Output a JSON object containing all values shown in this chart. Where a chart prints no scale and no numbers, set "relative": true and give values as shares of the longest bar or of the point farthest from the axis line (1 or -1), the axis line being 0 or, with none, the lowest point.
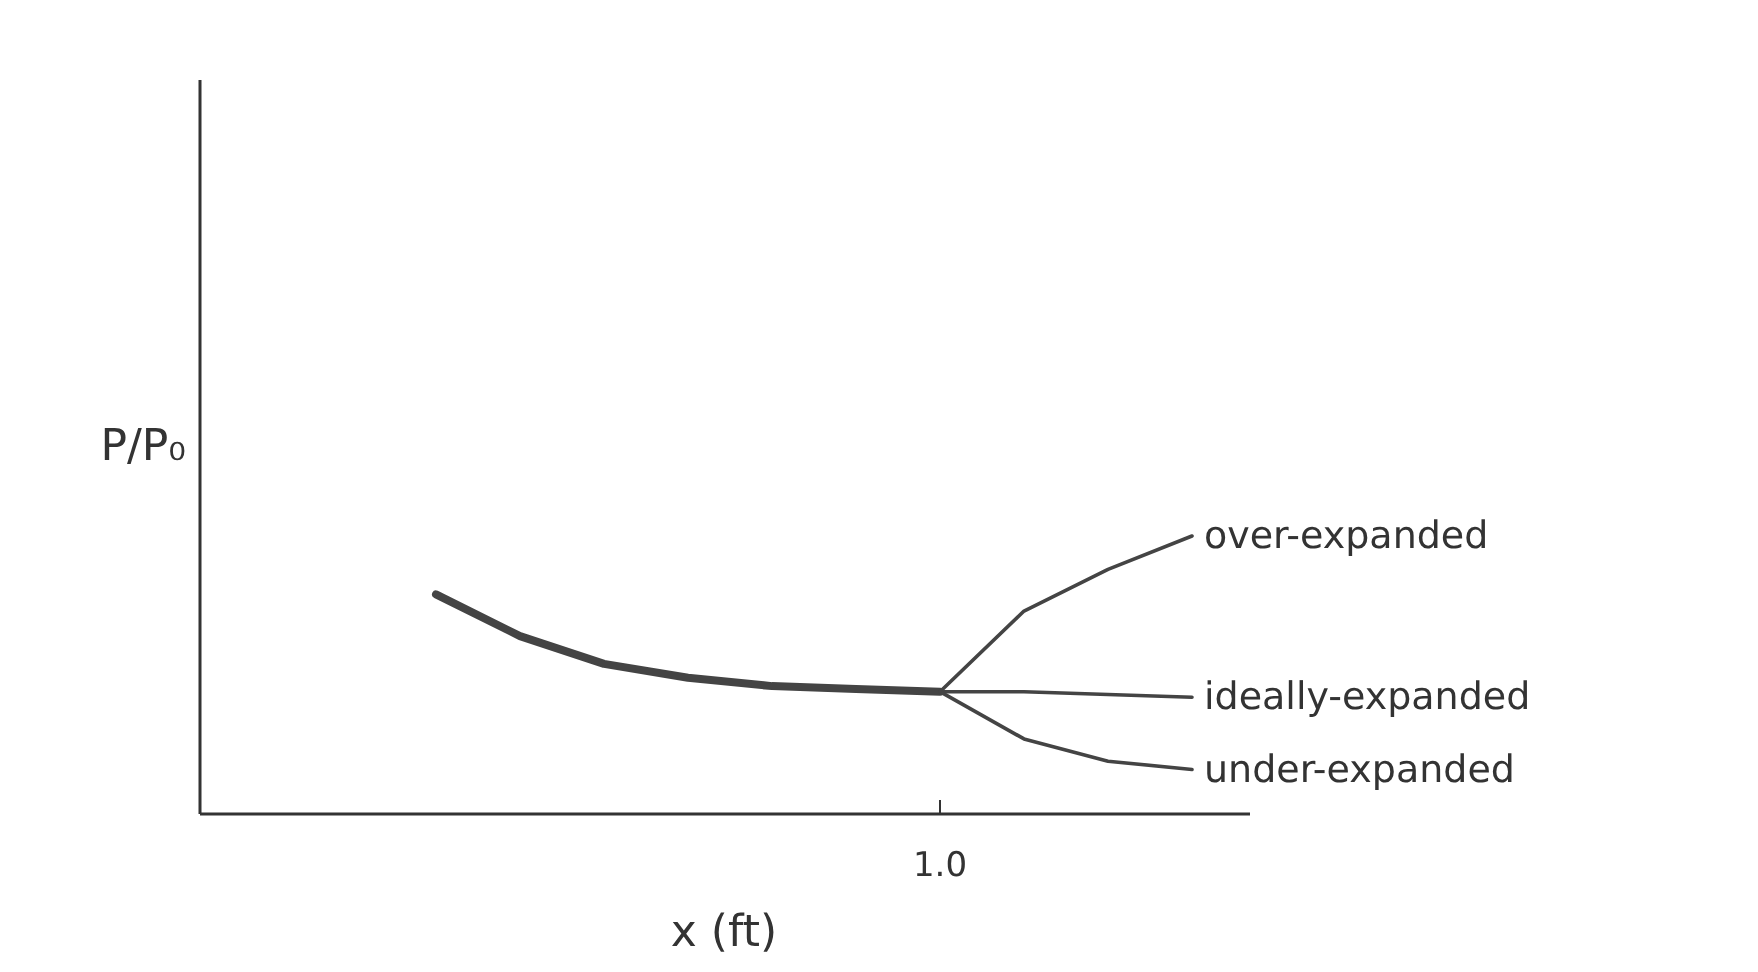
{
  "chart_data": {
    "type": "line",
    "relative": true,
    "xlabel": "x (ft)",
    "ylabel": "P/P₀",
    "annotations": [
      "1.0"
    ],
    "categories": [
      null,
      null,
      null,
      null,
      null,
      null,
      null,
      null,
      null,
      null
    ],
    "series": [
      {
        "color": "#444444",
        "values": [
          0.79,
          0.64,
          0.54,
          0.49,
          0.46,
          0.45,
          0.44,
          null,
          null,
          null
        ]
      },
      {
        "name": "over-expanded",
        "color": "#444444",
        "values": [
          null,
          null,
          null,
          null,
          null,
          null,
          0.44,
          0.73,
          0.88,
          1.0
        ]
      },
      {
        "name": "ideally-expanded",
        "color": "#444444",
        "values": [
          null,
          null,
          null,
          null,
          null,
          null,
          0.44,
          0.44,
          0.43,
          0.42
        ]
      },
      {
        "name": "under-expanded",
        "color": "#444444",
        "values": [
          null,
          null,
          null,
          null,
          null,
          null,
          0.44,
          0.27,
          0.19,
          0.16
        ]
      }
    ]
  }
}
